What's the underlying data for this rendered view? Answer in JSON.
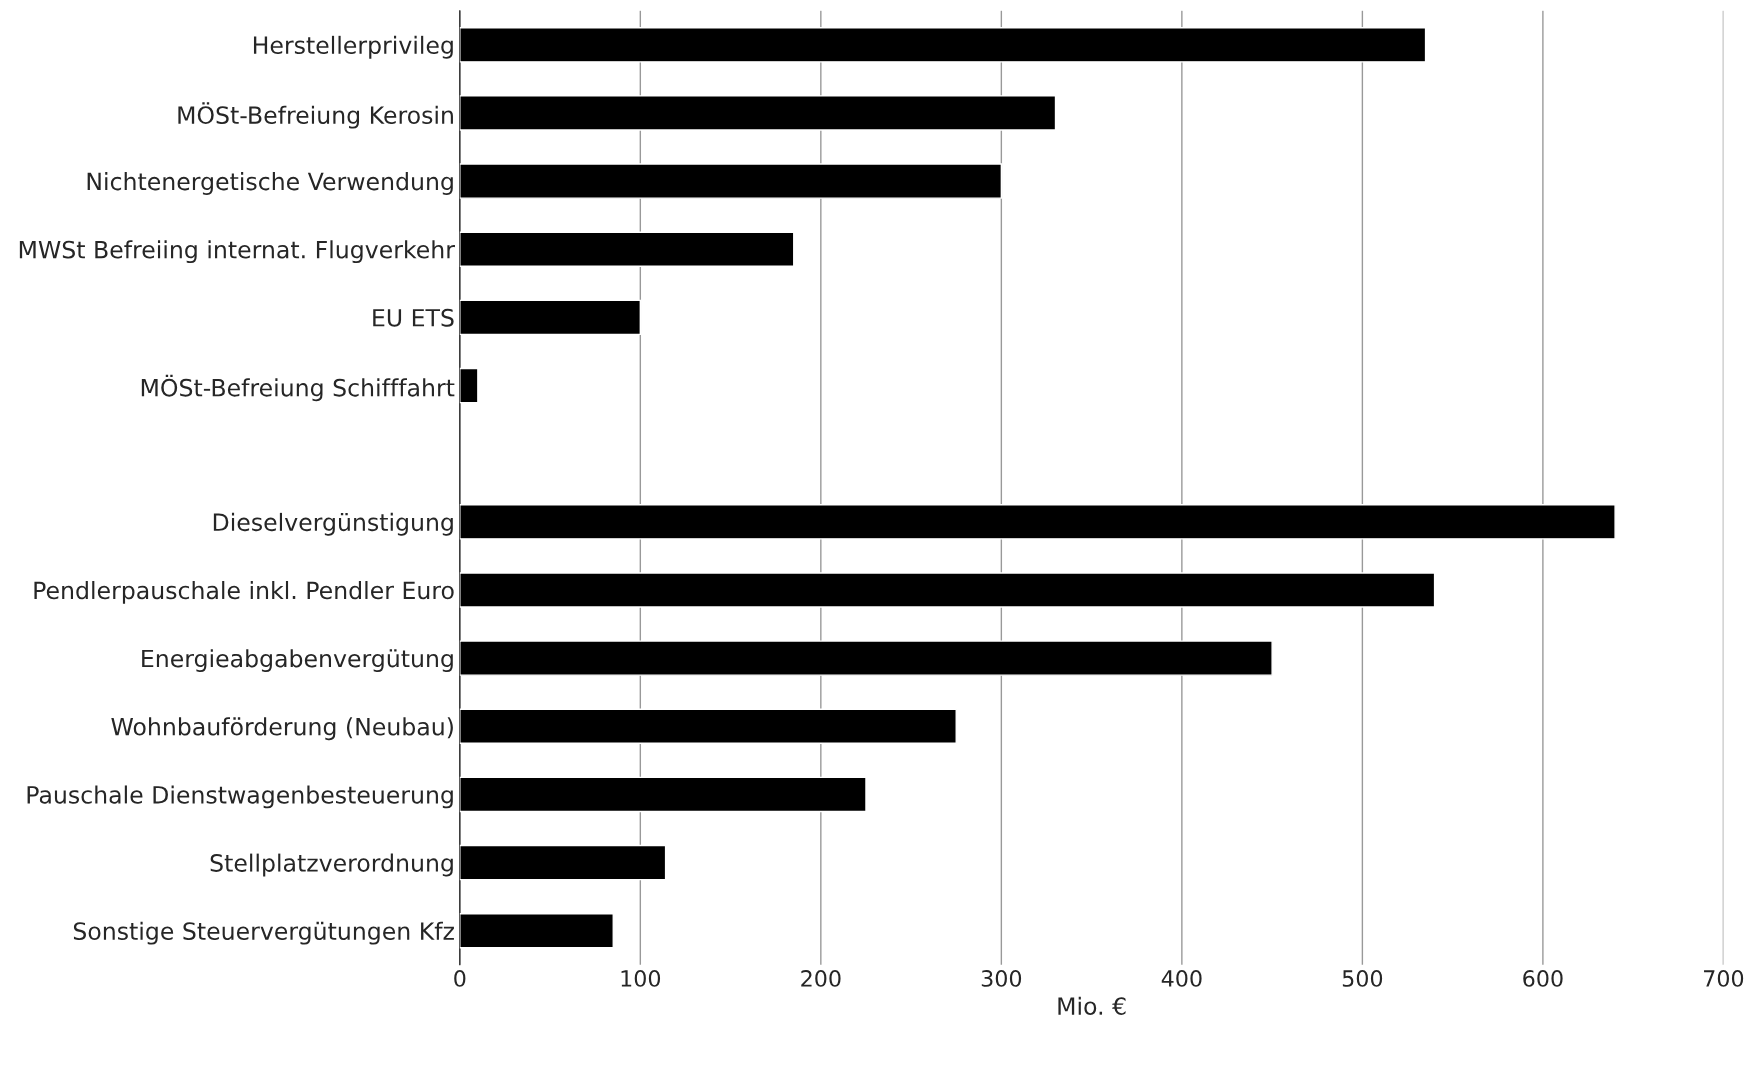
{
  "chart_data": {
    "type": "bar",
    "orientation": "horizontal",
    "xlabel": "Mio. €",
    "categories": [
      "Herstellerprivileg",
      "MÖSt-Befreiung Kerosin",
      "Nichtenergetische Verwendung",
      "MWSt Befreiing internat. Flugverkehr",
      "EU ETS",
      "MÖSt-Befreiung Schifffahrt",
      null,
      "Dieselvergünstigung",
      "Pendlerpauschale inkl. Pendler Euro",
      "Energieabgabenvergütung",
      "Wohnbauförderung (Neubau)",
      "Pauschale Dienstwagenbesteuerung",
      "Stellplatzverordnung",
      "Sonstige Steuervergütungen Kfz"
    ],
    "values": [
      535,
      330,
      300,
      185,
      100,
      10,
      null,
      640,
      540,
      450,
      275,
      225,
      114,
      85
    ],
    "color": "#000000",
    "xlim": [
      0,
      700
    ],
    "xticks": [
      0,
      100,
      200,
      300,
      400,
      500,
      600,
      700
    ],
    "grid": "x"
  }
}
